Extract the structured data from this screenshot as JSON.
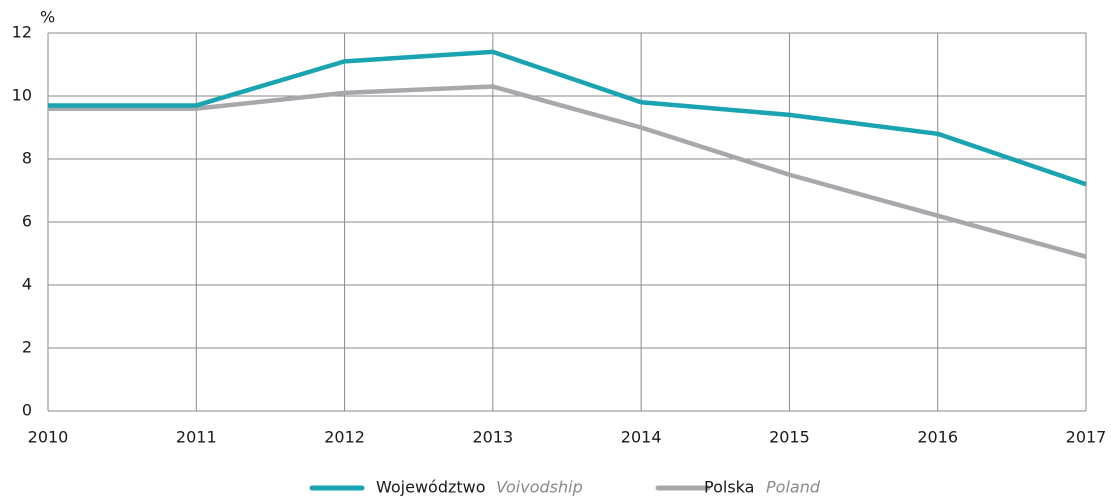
{
  "chart_data": {
    "type": "line",
    "y_unit": "%",
    "x": [
      2010,
      2011,
      2012,
      2013,
      2014,
      2015,
      2016,
      2017
    ],
    "xlim": [
      2010,
      2017
    ],
    "xticks": [
      2010,
      2011,
      2012,
      2013,
      2014,
      2015,
      2016,
      2017
    ],
    "ylim": [
      0,
      12
    ],
    "yticks": [
      0,
      2,
      4,
      6,
      8,
      10,
      12
    ],
    "grid": true,
    "legend": "bottom",
    "series": [
      {
        "name": "Województwo",
        "name_en": "Voivodship",
        "color": "#1aa3b0",
        "values": [
          9.7,
          9.7,
          11.1,
          11.4,
          9.8,
          9.4,
          8.8,
          7.2
        ]
      },
      {
        "name": "Polska",
        "name_en": "Poland",
        "color": "#a7a8ab",
        "values": [
          9.6,
          9.6,
          10.1,
          10.3,
          9.0,
          7.5,
          6.2,
          4.9
        ]
      }
    ]
  }
}
